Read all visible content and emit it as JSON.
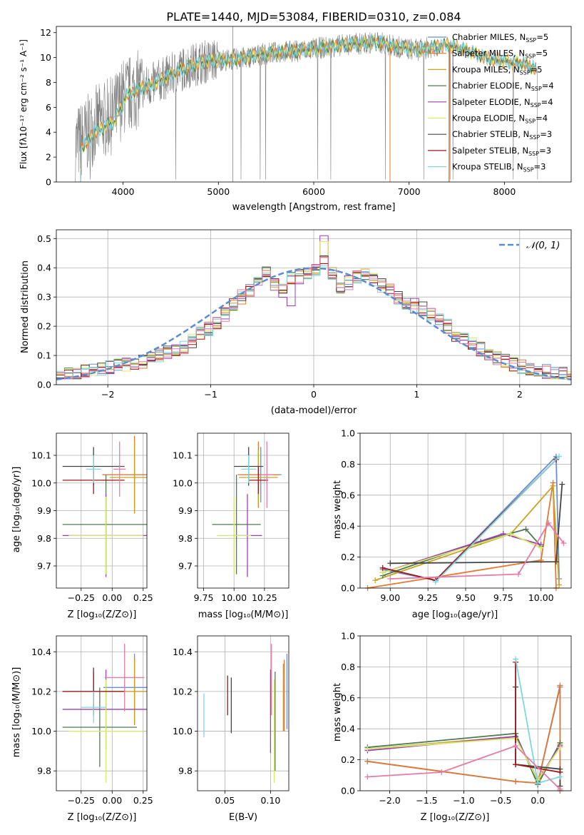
{
  "colors": {
    "c1": "#6a8fd1",
    "c2": "#e07a32",
    "c3": "#c9a227",
    "c4": "#4f7b52",
    "c5": "#9b3fb2",
    "c6": "#d8e86a",
    "c7": "#444444",
    "c8": "#a01717",
    "c9": "#7fd6e0",
    "pink": "#e87aa7",
    "gray": "#808080",
    "normal": "#5b8bd4"
  },
  "chart_data": [
    {
      "id": "spectrum",
      "type": "line",
      "title": "PLATE=1440, MJD=53084, FIBERID=0310, z=0.084",
      "xlabel": "wavelength [Angstrom, rest frame]",
      "ylabel": "Flux [fλ10⁻¹⁷ erg cm⁻² s⁻¹ A⁻¹]",
      "xlim": [
        3300,
        8700
      ],
      "ylim": [
        0,
        12.5
      ],
      "xticks": [
        4000,
        5000,
        6000,
        7000,
        8000
      ],
      "yticks": [
        0,
        2,
        4,
        6,
        8,
        10,
        12
      ],
      "legend": [
        {
          "name": "Chabrier MILES, N",
          "sub": "SSP",
          "tail": "=5",
          "color": "c1"
        },
        {
          "name": "Salpeter MILES, N",
          "sub": "SSP",
          "tail": "=5",
          "color": "c2"
        },
        {
          "name": "Kroupa MILES, N",
          "sub": "SSP",
          "tail": "=5",
          "color": "c3"
        },
        {
          "name": "Chabrier ELODIE, N",
          "sub": "SSP",
          "tail": "=4",
          "color": "c4"
        },
        {
          "name": "Salpeter ELODIE, N",
          "sub": "SSP",
          "tail": "=4",
          "color": "c5"
        },
        {
          "name": "Kroupa ELODIE, N",
          "sub": "SSP",
          "tail": "=4",
          "color": "c6"
        },
        {
          "name": "Chabrier STELIB, N",
          "sub": "SSP",
          "tail": "=3",
          "color": "c7"
        },
        {
          "name": "Salpeter STELIB, N",
          "sub": "SSP",
          "tail": "=3",
          "color": "c8"
        },
        {
          "name": "Kroupa STELIB, N",
          "sub": "SSP",
          "tail": "=3",
          "color": "c9"
        }
      ],
      "continuum": [
        [
          3500,
          3.0
        ],
        [
          3600,
          3.6
        ],
        [
          3700,
          4.6
        ],
        [
          3800,
          5.0
        ],
        [
          3900,
          5.4
        ],
        [
          4000,
          6.8
        ],
        [
          4100,
          7.2
        ],
        [
          4200,
          7.6
        ],
        [
          4300,
          7.8
        ],
        [
          4400,
          8.2
        ],
        [
          4500,
          8.6
        ],
        [
          4600,
          9.0
        ],
        [
          4700,
          9.3
        ],
        [
          4800,
          9.6
        ],
        [
          4900,
          9.7
        ],
        [
          5000,
          9.8
        ],
        [
          5100,
          9.8
        ],
        [
          5200,
          9.9
        ],
        [
          5300,
          10.0
        ],
        [
          5400,
          10.2
        ],
        [
          5500,
          10.3
        ],
        [
          5600,
          10.4
        ],
        [
          5700,
          10.5
        ],
        [
          5800,
          10.5
        ],
        [
          5900,
          10.6
        ],
        [
          6000,
          10.7
        ],
        [
          6100,
          10.8
        ],
        [
          6200,
          10.9
        ],
        [
          6300,
          11.0
        ],
        [
          6400,
          11.1
        ],
        [
          6500,
          11.1
        ],
        [
          6600,
          11.2
        ],
        [
          6700,
          11.2
        ],
        [
          6800,
          11.0
        ],
        [
          6900,
          10.8
        ],
        [
          7000,
          10.7
        ],
        [
          7100,
          10.6
        ],
        [
          7200,
          10.8
        ],
        [
          7300,
          10.9
        ],
        [
          7400,
          11.0
        ],
        [
          7500,
          10.8
        ],
        [
          7600,
          10.6
        ],
        [
          7700,
          10.3
        ],
        [
          7800,
          10.0
        ],
        [
          7900,
          9.8
        ],
        [
          8000,
          9.7
        ],
        [
          8100,
          9.6
        ],
        [
          8200,
          9.5
        ],
        [
          8300,
          9.2
        ],
        [
          8350,
          9.0
        ]
      ]
    },
    {
      "id": "residuals",
      "type": "step",
      "xlabel": "(data-model)/error",
      "ylabel": "Normed distribution",
      "xlim": [
        -2.5,
        2.5
      ],
      "ylim": [
        0,
        0.53
      ],
      "xticks": [
        -2,
        -1,
        0,
        1,
        2
      ],
      "yticks": [
        0.0,
        0.1,
        0.2,
        0.3,
        0.4,
        0.5
      ],
      "legend": "𝒩(0, 1)",
      "bin_edges_from": -2.5,
      "bin_width": 0.1,
      "histogram_base": [
        0.03,
        0.035,
        0.04,
        0.045,
        0.05,
        0.055,
        0.06,
        0.065,
        0.07,
        0.075,
        0.08,
        0.09,
        0.1,
        0.11,
        0.12,
        0.13,
        0.15,
        0.17,
        0.19,
        0.21,
        0.24,
        0.27,
        0.3,
        0.32,
        0.35,
        0.38,
        0.34,
        0.32,
        0.36,
        0.37,
        0.38,
        0.39,
        0.42,
        0.38,
        0.33,
        0.35,
        0.37,
        0.38,
        0.36,
        0.34,
        0.32,
        0.3,
        0.28,
        0.27,
        0.26,
        0.24,
        0.22,
        0.2,
        0.17,
        0.16,
        0.14,
        0.12,
        0.1,
        0.09,
        0.08,
        0.07,
        0.06,
        0.055,
        0.05,
        0.045,
        0.04,
        0.035,
        0.03
      ]
    },
    {
      "id": "age-vs-Z",
      "type": "errorbar",
      "xlabel": "Z [log₁₀(Z/Z⊙)]",
      "ylabel": "age  [log₁₀(age/yr)]",
      "xlim": [
        -0.45,
        0.28
      ],
      "ylim": [
        9.62,
        10.18
      ],
      "xticks": [
        -0.25,
        0.0,
        0.25
      ],
      "yticks": [
        9.7,
        9.8,
        9.9,
        10.0,
        10.1
      ],
      "points": [
        {
          "color": "c1",
          "x": 0.18,
          "y": 10.03,
          "xe": 0.25,
          "ye": 0.12
        },
        {
          "color": "c2",
          "x": 0.18,
          "y": 10.03,
          "xe": 0.26,
          "ye": 0.14
        },
        {
          "color": "c3",
          "x": 0.18,
          "y": 10.02,
          "xe": 0.2,
          "ye": 0.13
        },
        {
          "color": "c4",
          "x": -0.05,
          "y": 9.85,
          "xe": 0.35,
          "ye": 0.18
        },
        {
          "color": "c5",
          "x": -0.05,
          "y": 9.81,
          "xe": 0.35,
          "ye": 0.15
        },
        {
          "color": "c6",
          "x": -0.05,
          "y": 9.81,
          "xe": 0.3,
          "ye": 0.14
        },
        {
          "color": "c7",
          "x": -0.15,
          "y": 10.06,
          "xe": 0.25,
          "ye": 0.07
        },
        {
          "color": "c8",
          "x": -0.15,
          "y": 10.01,
          "xe": 0.25,
          "ye": 0.05
        },
        {
          "color": "c9",
          "x": -0.15,
          "y": 10.05,
          "xe": 0.06,
          "ye": 0.05
        },
        {
          "color": "pink",
          "x": 0.06,
          "y": 10.05,
          "xe": 0.05,
          "ye": 0.1
        }
      ]
    },
    {
      "id": "age-vs-mass",
      "type": "errorbar",
      "xlabel": "mass [log₁₀(M/M⊙)]",
      "ylabel": "",
      "xlim": [
        9.7,
        10.45
      ],
      "ylim": [
        9.62,
        10.18
      ],
      "xticks": [
        9.75,
        10.0,
        10.25
      ],
      "yticks": [
        9.7,
        9.8,
        9.9,
        10.0,
        10.1
      ],
      "points": [
        {
          "color": "c1",
          "x": 10.22,
          "y": 10.03,
          "xe": 0.17,
          "ye": 0.1
        },
        {
          "color": "c2",
          "x": 10.2,
          "y": 10.03,
          "xe": 0.17,
          "ye": 0.12
        },
        {
          "color": "c3",
          "x": 10.2,
          "y": 10.02,
          "xe": 0.16,
          "ye": 0.1
        },
        {
          "color": "c4",
          "x": 10.02,
          "y": 9.85,
          "xe": 0.2,
          "ye": 0.18
        },
        {
          "color": "c5",
          "x": 10.11,
          "y": 9.81,
          "xe": 0.12,
          "ye": 0.15
        },
        {
          "color": "c6",
          "x": 10.0,
          "y": 9.81,
          "xe": 0.14,
          "ye": 0.14
        },
        {
          "color": "c7",
          "x": 10.12,
          "y": 10.06,
          "xe": 0.12,
          "ye": 0.07
        },
        {
          "color": "c8",
          "x": 10.2,
          "y": 10.01,
          "xe": 0.08,
          "ye": 0.05
        },
        {
          "color": "c9",
          "x": 10.12,
          "y": 10.05,
          "xe": 0.06,
          "ye": 0.05
        },
        {
          "color": "pink",
          "x": 10.27,
          "y": 10.03,
          "xe": 0.05,
          "ye": 0.12
        }
      ]
    },
    {
      "id": "weight-vs-age",
      "type": "line",
      "xlabel": "age  [log₁₀(age/yr)]",
      "ylabel": "mass weight",
      "xlim": [
        8.8,
        10.2
      ],
      "ylim": [
        0,
        1
      ],
      "xticks": [
        9.0,
        9.25,
        9.5,
        9.75,
        10.0
      ],
      "yticks": [
        0.0,
        0.2,
        0.4,
        0.6,
        0.8,
        1.0
      ],
      "series": [
        {
          "color": "c1",
          "x": [
            8.95,
            9.3,
            10.1,
            10.12
          ],
          "y": [
            0.12,
            0.05,
            0.85,
            0.06
          ]
        },
        {
          "color": "c2",
          "x": [
            8.85,
            10.0,
            10.08,
            10.1
          ],
          "y": [
            0.0,
            0.18,
            0.68,
            0.0
          ]
        },
        {
          "color": "c3",
          "x": [
            8.9,
            9.8,
            10.08,
            10.12
          ],
          "y": [
            0.05,
            0.35,
            0.66,
            0.02
          ]
        },
        {
          "color": "c4",
          "x": [
            8.95,
            9.6,
            9.9,
            10.0
          ],
          "y": [
            0.08,
            0.3,
            0.38,
            0.27
          ]
        },
        {
          "color": "c5",
          "x": [
            8.95,
            9.75,
            10.0
          ],
          "y": [
            0.1,
            0.35,
            0.28
          ]
        },
        {
          "color": "c6",
          "x": [
            8.95,
            9.8,
            10.0
          ],
          "y": [
            0.1,
            0.35,
            0.26
          ]
        },
        {
          "color": "c7",
          "x": [
            9.0,
            10.1,
            10.14
          ],
          "y": [
            0.16,
            0.17,
            0.67
          ]
        },
        {
          "color": "c8",
          "x": [
            8.95,
            9.3,
            10.1
          ],
          "y": [
            0.13,
            0.05,
            0.83
          ]
        },
        {
          "color": "c9",
          "x": [
            9.3,
            10.12
          ],
          "y": [
            0.04,
            0.85
          ]
        },
        {
          "color": "pink",
          "x": [
            9.0,
            9.85,
            10.05,
            10.15
          ],
          "y": [
            0.06,
            0.09,
            0.42,
            0.29
          ]
        }
      ]
    },
    {
      "id": "mass-vs-Z",
      "type": "errorbar",
      "xlabel": "Z [log₁₀(Z/Z⊙)]",
      "ylabel": "mass [log₁₀(M/M⊙)]",
      "xlim": [
        -0.45,
        0.28
      ],
      "ylim": [
        9.7,
        10.48
      ],
      "xticks": [
        -0.25,
        0.0,
        0.25
      ],
      "yticks": [
        9.8,
        10.0,
        10.2,
        10.4
      ],
      "points": [
        {
          "color": "c1",
          "x": 0.18,
          "y": 10.22,
          "xe": 0.25,
          "ye": 0.17
        },
        {
          "color": "c2",
          "x": 0.18,
          "y": 10.2,
          "xe": 0.26,
          "ye": 0.17
        },
        {
          "color": "c3",
          "x": 0.18,
          "y": 10.2,
          "xe": 0.2,
          "ye": 0.16
        },
        {
          "color": "c4",
          "x": -0.1,
          "y": 10.02,
          "xe": 0.3,
          "ye": 0.2
        },
        {
          "color": "c5",
          "x": -0.05,
          "y": 10.11,
          "xe": 0.35,
          "ye": 0.2
        },
        {
          "color": "c6",
          "x": -0.05,
          "y": 10.0,
          "xe": 0.3,
          "ye": 0.26
        },
        {
          "color": "c7",
          "x": -0.15,
          "y": 10.2,
          "xe": 0.25,
          "ye": 0.1
        },
        {
          "color": "c8",
          "x": -0.15,
          "y": 10.2,
          "xe": 0.25,
          "ye": 0.12
        },
        {
          "color": "c9",
          "x": -0.15,
          "y": 10.12,
          "xe": 0.1,
          "ye": 0.08
        },
        {
          "color": "pink",
          "x": 0.1,
          "y": 10.27,
          "xe": 0.16,
          "ye": 0.17
        }
      ]
    },
    {
      "id": "mass-vs-EBV",
      "type": "errorbar",
      "xlabel": "E(B-V)",
      "ylabel": "",
      "xlim": [
        0.02,
        0.12
      ],
      "ylim": [
        9.7,
        10.48
      ],
      "xticks": [
        0.05,
        0.1
      ],
      "yticks": [
        9.8,
        10.0,
        10.2,
        10.4
      ],
      "points": [
        {
          "color": "c1",
          "x": 0.118,
          "y": 10.2,
          "xe": 0,
          "ye": 0.19
        },
        {
          "color": "c2",
          "x": 0.115,
          "y": 10.18,
          "xe": 0,
          "ye": 0.18
        },
        {
          "color": "c3",
          "x": 0.114,
          "y": 10.17,
          "xe": 0,
          "ye": 0.17
        },
        {
          "color": "c4",
          "x": 0.105,
          "y": 10.05,
          "xe": 0,
          "ye": 0.25
        },
        {
          "color": "c5",
          "x": 0.1,
          "y": 10.1,
          "xe": 0,
          "ye": 0.21
        },
        {
          "color": "c6",
          "x": 0.104,
          "y": 10.0,
          "xe": 0,
          "ye": 0.26
        },
        {
          "color": "c7",
          "x": 0.057,
          "y": 10.13,
          "xe": 0,
          "ye": 0.14
        },
        {
          "color": "c8",
          "x": 0.053,
          "y": 10.18,
          "xe": 0,
          "ye": 0.1
        },
        {
          "color": "c9",
          "x": 0.027,
          "y": 10.08,
          "xe": 0,
          "ye": 0.11
        },
        {
          "color": "pink",
          "x": 0.101,
          "y": 10.26,
          "xe": 0,
          "ye": 0.18
        }
      ]
    },
    {
      "id": "weight-vs-Z",
      "type": "line",
      "xlabel": "Z [log₁₀(Z/Z⊙)]",
      "ylabel": "mass weight",
      "xlim": [
        -2.4,
        0.45
      ],
      "ylim": [
        0,
        1
      ],
      "xticks": [
        -2.0,
        -1.5,
        -1.0,
        -0.5,
        0.0
      ],
      "yticks": [
        0.0,
        0.2,
        0.4,
        0.6,
        0.8,
        1.0
      ],
      "series": [
        {
          "color": "c1",
          "x": [
            -2.3,
            -0.3,
            0.0,
            0.3,
            0.3
          ],
          "y": [
            0.19,
            0.06,
            0.05,
            0.67,
            0.0
          ]
        },
        {
          "color": "c2",
          "x": [
            -2.3,
            -0.3,
            0.0,
            0.3,
            0.3
          ],
          "y": [
            0.19,
            0.06,
            0.05,
            0.68,
            0.0
          ]
        },
        {
          "color": "c3",
          "x": [
            -2.3,
            -0.3,
            0.0,
            0.3
          ],
          "y": [
            0.27,
            0.35,
            0.06,
            0.3
          ]
        },
        {
          "color": "c4",
          "x": [
            -2.3,
            -0.3,
            0.0,
            0.3
          ],
          "y": [
            0.28,
            0.37,
            0.04,
            0.31
          ]
        },
        {
          "color": "c5",
          "x": [
            -2.3,
            -0.3,
            0.0,
            0.3
          ],
          "y": [
            0.26,
            0.35,
            0.07,
            0.29
          ]
        },
        {
          "color": "c6",
          "x": [
            -2.3,
            -0.3,
            0.0,
            0.3
          ],
          "y": [
            0.27,
            0.34,
            0.07,
            0.28
          ]
        },
        {
          "color": "c7",
          "x": [
            -0.3,
            -0.3,
            0.3,
            0.3
          ],
          "y": [
            0.67,
            0.17,
            0.14,
            0.03
          ]
        },
        {
          "color": "c8",
          "x": [
            -0.3,
            -0.3,
            0.3
          ],
          "y": [
            0.83,
            0.17,
            0.12
          ]
        },
        {
          "color": "c9",
          "x": [
            -0.3,
            0.0,
            0.3
          ],
          "y": [
            0.85,
            0.05,
            0.09
          ]
        },
        {
          "color": "pink",
          "x": [
            -2.3,
            -1.3,
            -0.3,
            0.3
          ],
          "y": [
            0.09,
            0.12,
            0.29,
            0.01
          ]
        }
      ]
    }
  ]
}
